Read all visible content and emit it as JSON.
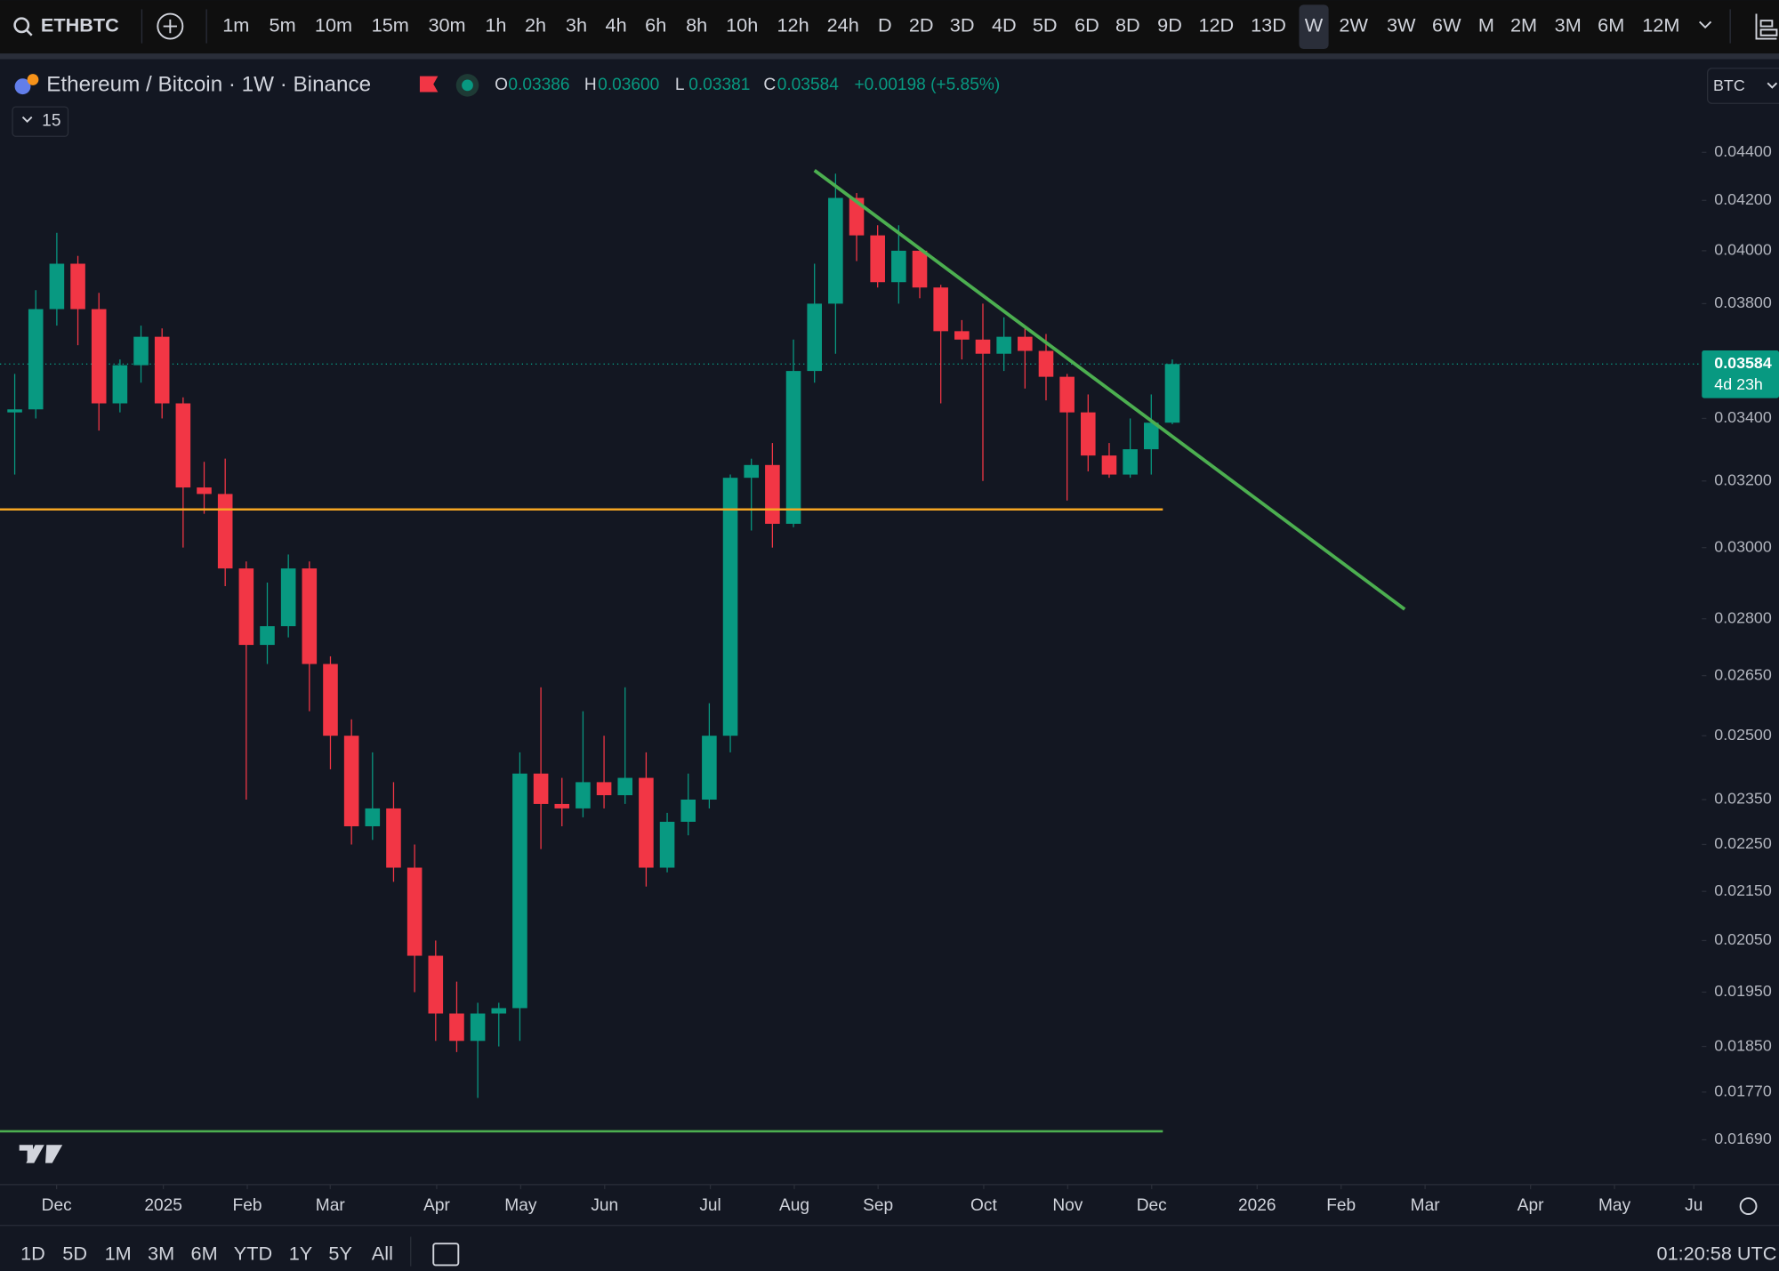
{
  "toolbar": {
    "symbol": "ETHBTC",
    "timeframes": [
      "1m",
      "5m",
      "10m",
      "15m",
      "30m",
      "1h",
      "2h",
      "3h",
      "4h",
      "6h",
      "8h",
      "10h",
      "12h",
      "24h",
      "D",
      "2D",
      "3D",
      "4D",
      "5D",
      "6D",
      "8D",
      "9D",
      "12D",
      "13D",
      "W",
      "2W",
      "3W",
      "6W",
      "M",
      "2M",
      "3M",
      "6M",
      "12M"
    ],
    "active_index": 24
  },
  "header": {
    "title": "Ethereum / Bitcoin · 1W · Binance",
    "ohlc": [
      {
        "label": "O",
        "value": "0.03386"
      },
      {
        "label": "H",
        "value": "0.03600"
      },
      {
        "label": "L",
        "value": "0.03381"
      },
      {
        "label": "C",
        "value": "0.03584"
      }
    ],
    "change": "+0.00198 (+5.85%)",
    "indicators_count": "15",
    "currency": "BTC",
    "countdown": "4d 23h"
  },
  "footer": {
    "ranges": [
      "1D",
      "5D",
      "1M",
      "3M",
      "6M",
      "YTD",
      "1Y",
      "5Y",
      "All"
    ],
    "clock": "01:20:58 UTC"
  },
  "chart_data": {
    "type": "candlestick",
    "log_scale": true,
    "grid": false,
    "up_color": "#089981",
    "down_color": "#f23645",
    "categories": [
      null,
      null,
      null,
      null,
      null,
      null,
      null,
      null,
      null,
      null,
      null,
      null,
      null,
      null,
      null,
      null,
      null,
      null,
      null,
      null,
      null,
      null,
      null,
      null,
      null,
      null,
      null,
      null,
      null,
      null,
      null,
      null,
      null,
      null,
      null,
      null,
      null,
      null,
      null,
      null,
      null,
      null,
      null,
      null,
      null,
      null,
      null,
      null,
      null,
      null,
      null,
      null,
      null,
      null,
      null,
      null
    ],
    "open": [
      0.0342,
      0.0343,
      0.0378,
      0.0395,
      0.0378,
      0.0345,
      0.0358,
      0.0368,
      0.0345,
      0.0318,
      0.0316,
      0.0294,
      0.0273,
      0.0278,
      0.0294,
      0.0268,
      0.025,
      0.0229,
      0.0233,
      0.022,
      0.0202,
      0.0191,
      0.0186,
      0.0191,
      0.0192,
      0.0241,
      0.0234,
      0.0233,
      0.0239,
      0.0236,
      0.024,
      0.022,
      0.023,
      0.0235,
      0.025,
      0.0321,
      0.0325,
      0.0307,
      0.0356,
      0.038,
      0.0421,
      0.0406,
      0.0388,
      0.04,
      0.0386,
      0.037,
      0.0367,
      0.0362,
      0.0368,
      0.0363,
      0.0354,
      0.0342,
      0.0328,
      0.0322,
      0.033,
      0.03386
    ],
    "high": [
      0.0355,
      0.0385,
      0.0407,
      0.0398,
      0.0384,
      0.036,
      0.0372,
      0.0371,
      0.0347,
      0.0326,
      0.0327,
      0.0296,
      0.029,
      0.0298,
      0.0296,
      0.027,
      0.0254,
      0.0246,
      0.0239,
      0.0225,
      0.0205,
      0.0197,
      0.0193,
      0.0193,
      0.0246,
      0.0262,
      0.024,
      0.0256,
      0.025,
      0.0262,
      0.0246,
      0.0232,
      0.0241,
      0.0258,
      0.0322,
      0.0327,
      0.0332,
      0.0367,
      0.0395,
      0.0431,
      0.0423,
      0.041,
      0.041,
      0.0401,
      0.0387,
      0.0374,
      0.038,
      0.0375,
      0.0372,
      0.0369,
      0.0355,
      0.0348,
      0.0332,
      0.034,
      0.0348,
      0.036
    ],
    "low": [
      0.0322,
      0.034,
      0.0372,
      0.0365,
      0.0336,
      0.0342,
      0.0352,
      0.034,
      0.03,
      0.031,
      0.0289,
      0.0235,
      0.0268,
      0.0275,
      0.0256,
      0.0242,
      0.0225,
      0.0226,
      0.0217,
      0.0195,
      0.0186,
      0.0184,
      0.0176,
      0.0185,
      0.0186,
      0.0224,
      0.0229,
      0.0231,
      0.0233,
      0.0234,
      0.0216,
      0.0219,
      0.0227,
      0.0233,
      0.0246,
      0.0305,
      0.03,
      0.0306,
      0.0352,
      0.0362,
      0.0396,
      0.0386,
      0.038,
      0.0382,
      0.0345,
      0.036,
      0.032,
      0.0356,
      0.035,
      0.0346,
      0.0314,
      0.0323,
      0.0321,
      0.0321,
      0.0322,
      0.03381
    ],
    "close": [
      0.0343,
      0.0378,
      0.0395,
      0.0378,
      0.0345,
      0.0358,
      0.0368,
      0.0345,
      0.0318,
      0.0316,
      0.0294,
      0.0273,
      0.0278,
      0.0294,
      0.0268,
      0.025,
      0.0229,
      0.0233,
      0.022,
      0.0202,
      0.0191,
      0.0186,
      0.0191,
      0.0192,
      0.0241,
      0.0234,
      0.0233,
      0.0239,
      0.0236,
      0.024,
      0.022,
      0.023,
      0.0235,
      0.025,
      0.0321,
      0.0325,
      0.0307,
      0.0356,
      0.038,
      0.0421,
      0.0406,
      0.0388,
      0.04,
      0.0386,
      0.037,
      0.0367,
      0.0362,
      0.0368,
      0.0363,
      0.0354,
      0.0342,
      0.0328,
      0.0322,
      0.033,
      0.03386,
      0.03584
    ],
    "ylim": [
      0.0162,
      0.048
    ],
    "yticks": [
      {
        "value": 0.044,
        "label": "0.04400"
      },
      {
        "value": 0.042,
        "label": "0.04200"
      },
      {
        "value": 0.04,
        "label": "0.04000"
      },
      {
        "value": 0.038,
        "label": "0.03800"
      },
      {
        "value": 0.034,
        "label": "0.03400"
      },
      {
        "value": 0.032,
        "label": "0.03200"
      },
      {
        "value": 0.03,
        "label": "0.03000"
      },
      {
        "value": 0.028,
        "label": "0.02800"
      },
      {
        "value": 0.0265,
        "label": "0.02650"
      },
      {
        "value": 0.025,
        "label": "0.02500"
      },
      {
        "value": 0.0235,
        "label": "0.02350"
      },
      {
        "value": 0.0225,
        "label": "0.02250"
      },
      {
        "value": 0.0215,
        "label": "0.02150"
      },
      {
        "value": 0.0205,
        "label": "0.02050"
      },
      {
        "value": 0.0195,
        "label": "0.01950"
      },
      {
        "value": 0.0185,
        "label": "0.01850"
      },
      {
        "value": 0.0177,
        "label": "0.01770"
      },
      {
        "value": 0.0169,
        "label": "0.01690"
      }
    ],
    "xlim": [
      -0.7,
      80.16
    ],
    "xticks": [
      {
        "value": 1.99,
        "label": "Dec"
      },
      {
        "value": 7.06,
        "label": "2025"
      },
      {
        "value": 11.05,
        "label": "Feb"
      },
      {
        "value": 14.99,
        "label": "Mar"
      },
      {
        "value": 20.05,
        "label": "Apr"
      },
      {
        "value": 24.04,
        "label": "May"
      },
      {
        "value": 28.03,
        "label": "Jun"
      },
      {
        "value": 33.05,
        "label": "Jul"
      },
      {
        "value": 37.04,
        "label": "Aug"
      },
      {
        "value": 41.02,
        "label": "Sep"
      },
      {
        "value": 46.04,
        "label": "Oct"
      },
      {
        "value": 50.03,
        "label": "Nov"
      },
      {
        "value": 54.02,
        "label": "Dec"
      },
      {
        "value": 59.03,
        "label": "2026"
      },
      {
        "value": 63.02,
        "label": "Feb"
      },
      {
        "value": 67.01,
        "label": "Mar"
      },
      {
        "value": 72.02,
        "label": "Apr"
      },
      {
        "value": 76.01,
        "label": "May"
      },
      {
        "value": 79.78,
        "label": "Ju"
      }
    ],
    "lines": [
      {
        "color": "#f5a623",
        "x": [
          -0.7,
          54.55
        ],
        "values": [
          0.03113,
          0.03113
        ]
      },
      {
        "color": "#4caf50",
        "x": [
          -0.7,
          54.55
        ],
        "values": [
          0.01704,
          0.01704
        ]
      },
      {
        "color": "#4caf50",
        "x": [
          38.0,
          66.04
        ],
        "values": [
          0.04324,
          0.02826
        ]
      }
    ]
  }
}
